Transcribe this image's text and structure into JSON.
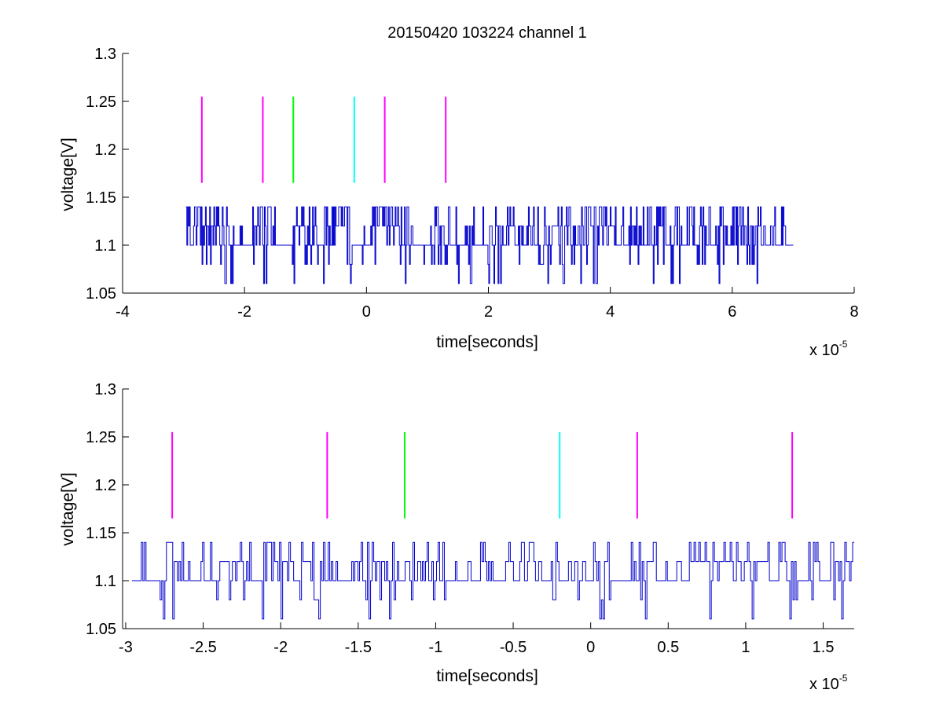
{
  "chart_data": [
    {
      "type": "line",
      "title": "20150420 103224 channel 1",
      "xlabel": "time[seconds]",
      "ylabel": "voltage[V]",
      "x_exponent_label": "x 10",
      "x_exponent_power": "-5",
      "xlim": [
        -4,
        8
      ],
      "ylim": [
        1.05,
        1.3
      ],
      "xticks": [
        -4,
        -2,
        0,
        2,
        4,
        6,
        8
      ],
      "xtick_labels": [
        "-4",
        "-2",
        "0",
        "2",
        "4",
        "6",
        "8"
      ],
      "yticks": [
        1.05,
        1.1,
        1.15,
        1.2,
        1.25,
        1.3
      ],
      "ytick_labels": [
        "1.05",
        "1.1",
        "1.15",
        "1.2",
        "1.25",
        "1.3"
      ],
      "grid": false,
      "signal": {
        "color": "#0000cc",
        "x_start": -2.96,
        "x_end": 7.0,
        "levels": [
          1.06,
          1.08,
          1.1,
          1.12,
          1.14
        ],
        "baseline": 1.1,
        "steps": 720
      },
      "markers": [
        {
          "x": -2.7,
          "y_bottom": 1.165,
          "y_top": 1.255,
          "color": "#ff00ff"
        },
        {
          "x": -1.7,
          "y_bottom": 1.165,
          "y_top": 1.255,
          "color": "#ff00ff"
        },
        {
          "x": -1.2,
          "y_bottom": 1.165,
          "y_top": 1.255,
          "color": "#00ff00"
        },
        {
          "x": -0.2,
          "y_bottom": 1.165,
          "y_top": 1.255,
          "color": "#00ffff"
        },
        {
          "x": 0.3,
          "y_bottom": 1.165,
          "y_top": 1.255,
          "color": "#ff00ff"
        },
        {
          "x": 1.3,
          "y_bottom": 1.165,
          "y_top": 1.255,
          "color": "#ff00ff"
        }
      ]
    },
    {
      "type": "line",
      "title": "",
      "xlabel": "time[seconds]",
      "ylabel": "voltage[V]",
      "x_exponent_label": "x 10",
      "x_exponent_power": "-5",
      "xlim": [
        -3.02,
        1.7
      ],
      "ylim": [
        1.05,
        1.3
      ],
      "xticks": [
        -3,
        -2.5,
        -2,
        -1.5,
        -1,
        -0.5,
        0,
        0.5,
        1,
        1.5
      ],
      "xtick_labels": [
        "-3",
        "-2.5",
        "-2",
        "-1.5",
        "-1",
        "-0.5",
        "0",
        "0.5",
        "1",
        "1.5"
      ],
      "yticks": [
        1.05,
        1.1,
        1.15,
        1.2,
        1.25,
        1.3
      ],
      "ytick_labels": [
        "1.05",
        "1.1",
        "1.15",
        "1.2",
        "1.25",
        "1.3"
      ],
      "grid": false,
      "signal": {
        "color": "#0000cc",
        "x_start": -2.96,
        "x_end": 1.7,
        "levels": [
          1.06,
          1.08,
          1.1,
          1.12,
          1.14
        ],
        "baseline": 1.1,
        "steps": 460
      },
      "markers": [
        {
          "x": -2.7,
          "y_bottom": 1.165,
          "y_top": 1.255,
          "color": "#ff00ff"
        },
        {
          "x": -1.7,
          "y_bottom": 1.165,
          "y_top": 1.255,
          "color": "#ff00ff"
        },
        {
          "x": -1.2,
          "y_bottom": 1.165,
          "y_top": 1.255,
          "color": "#00ff00"
        },
        {
          "x": -0.2,
          "y_bottom": 1.165,
          "y_top": 1.255,
          "color": "#00ffff"
        },
        {
          "x": 0.3,
          "y_bottom": 1.165,
          "y_top": 1.255,
          "color": "#ff00ff"
        },
        {
          "x": 1.3,
          "y_bottom": 1.165,
          "y_top": 1.255,
          "color": "#ff00ff"
        }
      ]
    }
  ]
}
